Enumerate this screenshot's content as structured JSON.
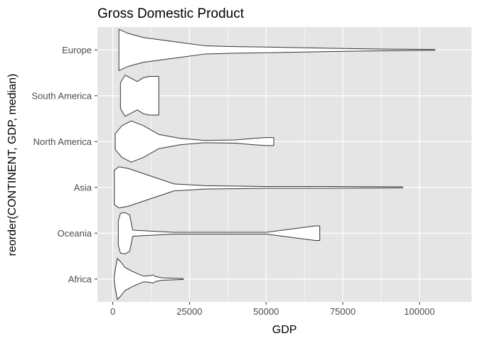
{
  "chart_data": {
    "type": "violin",
    "orientation": "horizontal",
    "title": "Gross Domestic Product",
    "xlabel": "GDP",
    "ylabel": "reorder(CONTINENT, GDP, median)",
    "xlim": [
      -5000,
      117000
    ],
    "x_ticks": [
      0,
      25000,
      50000,
      75000,
      100000
    ],
    "x_tick_labels": [
      "0",
      "25000",
      "50000",
      "75000",
      "100000"
    ],
    "categories": [
      "Africa",
      "Oceania",
      "Asia",
      "North America",
      "South America",
      "Europe"
    ],
    "grid": true,
    "series": [
      {
        "category": "Africa",
        "min": 500,
        "max": 23000,
        "density": [
          [
            500,
            0.06
          ],
          [
            800,
            0.22
          ],
          [
            1500,
            0.5
          ],
          [
            2500,
            0.42
          ],
          [
            4000,
            0.28
          ],
          [
            6000,
            0.2
          ],
          [
            8000,
            0.13
          ],
          [
            10000,
            0.07
          ],
          [
            12000,
            0.08
          ],
          [
            13000,
            0.1
          ],
          [
            14000,
            0.06
          ],
          [
            16000,
            0.03
          ],
          [
            20000,
            0.02
          ],
          [
            23000,
            0.01
          ]
        ]
      },
      {
        "category": "Oceania",
        "min": 1800,
        "max": 67500,
        "density": [
          [
            1800,
            0.2
          ],
          [
            2500,
            0.33
          ],
          [
            4000,
            0.34
          ],
          [
            5500,
            0.3
          ],
          [
            6500,
            0.05
          ],
          [
            20000,
            0.015
          ],
          [
            50000,
            0.015
          ],
          [
            66000,
            0.12
          ],
          [
            67500,
            0.12
          ]
        ]
      },
      {
        "category": "Asia",
        "min": 500,
        "max": 94500,
        "density": [
          [
            500,
            0.1
          ],
          [
            2000,
            0.12
          ],
          [
            5000,
            0.11
          ],
          [
            10000,
            0.08
          ],
          [
            15000,
            0.05
          ],
          [
            20000,
            0.02
          ],
          [
            30000,
            0.01
          ],
          [
            50000,
            0.005
          ],
          [
            70000,
            0.005
          ],
          [
            94500,
            0.003
          ]
        ]
      },
      {
        "category": "North America",
        "min": 800,
        "max": 52500,
        "density": [
          [
            800,
            0.1
          ],
          [
            3000,
            0.2
          ],
          [
            6000,
            0.26
          ],
          [
            10000,
            0.2
          ],
          [
            15000,
            0.09
          ],
          [
            22000,
            0.04
          ],
          [
            30000,
            0.015
          ],
          [
            40000,
            0.02
          ],
          [
            46000,
            0.04
          ],
          [
            50000,
            0.05
          ],
          [
            52500,
            0.05
          ]
        ]
      },
      {
        "category": "South America",
        "min": 2500,
        "max": 15000,
        "density": [
          [
            2500,
            0.2
          ],
          [
            4000,
            0.32
          ],
          [
            6000,
            0.27
          ],
          [
            8000,
            0.22
          ],
          [
            10000,
            0.28
          ],
          [
            12000,
            0.3
          ],
          [
            15000,
            0.3
          ]
        ]
      },
      {
        "category": "Europe",
        "min": 2000,
        "max": 105000,
        "density": [
          [
            2000,
            0.05
          ],
          [
            5000,
            0.04
          ],
          [
            10000,
            0.03
          ],
          [
            20000,
            0.02
          ],
          [
            30000,
            0.01
          ],
          [
            40000,
            0.008
          ],
          [
            50000,
            0.007
          ],
          [
            70000,
            0.004
          ],
          [
            90000,
            0.002
          ],
          [
            105000,
            0.001
          ]
        ]
      }
    ]
  },
  "colors": {
    "panel_bg": "#e5e5e5",
    "grid_major": "#ffffff",
    "violin_fill": "#ffffff",
    "violin_stroke": "#333333",
    "tick_mark": "#333333",
    "tick_label": "#4d4d4d"
  }
}
